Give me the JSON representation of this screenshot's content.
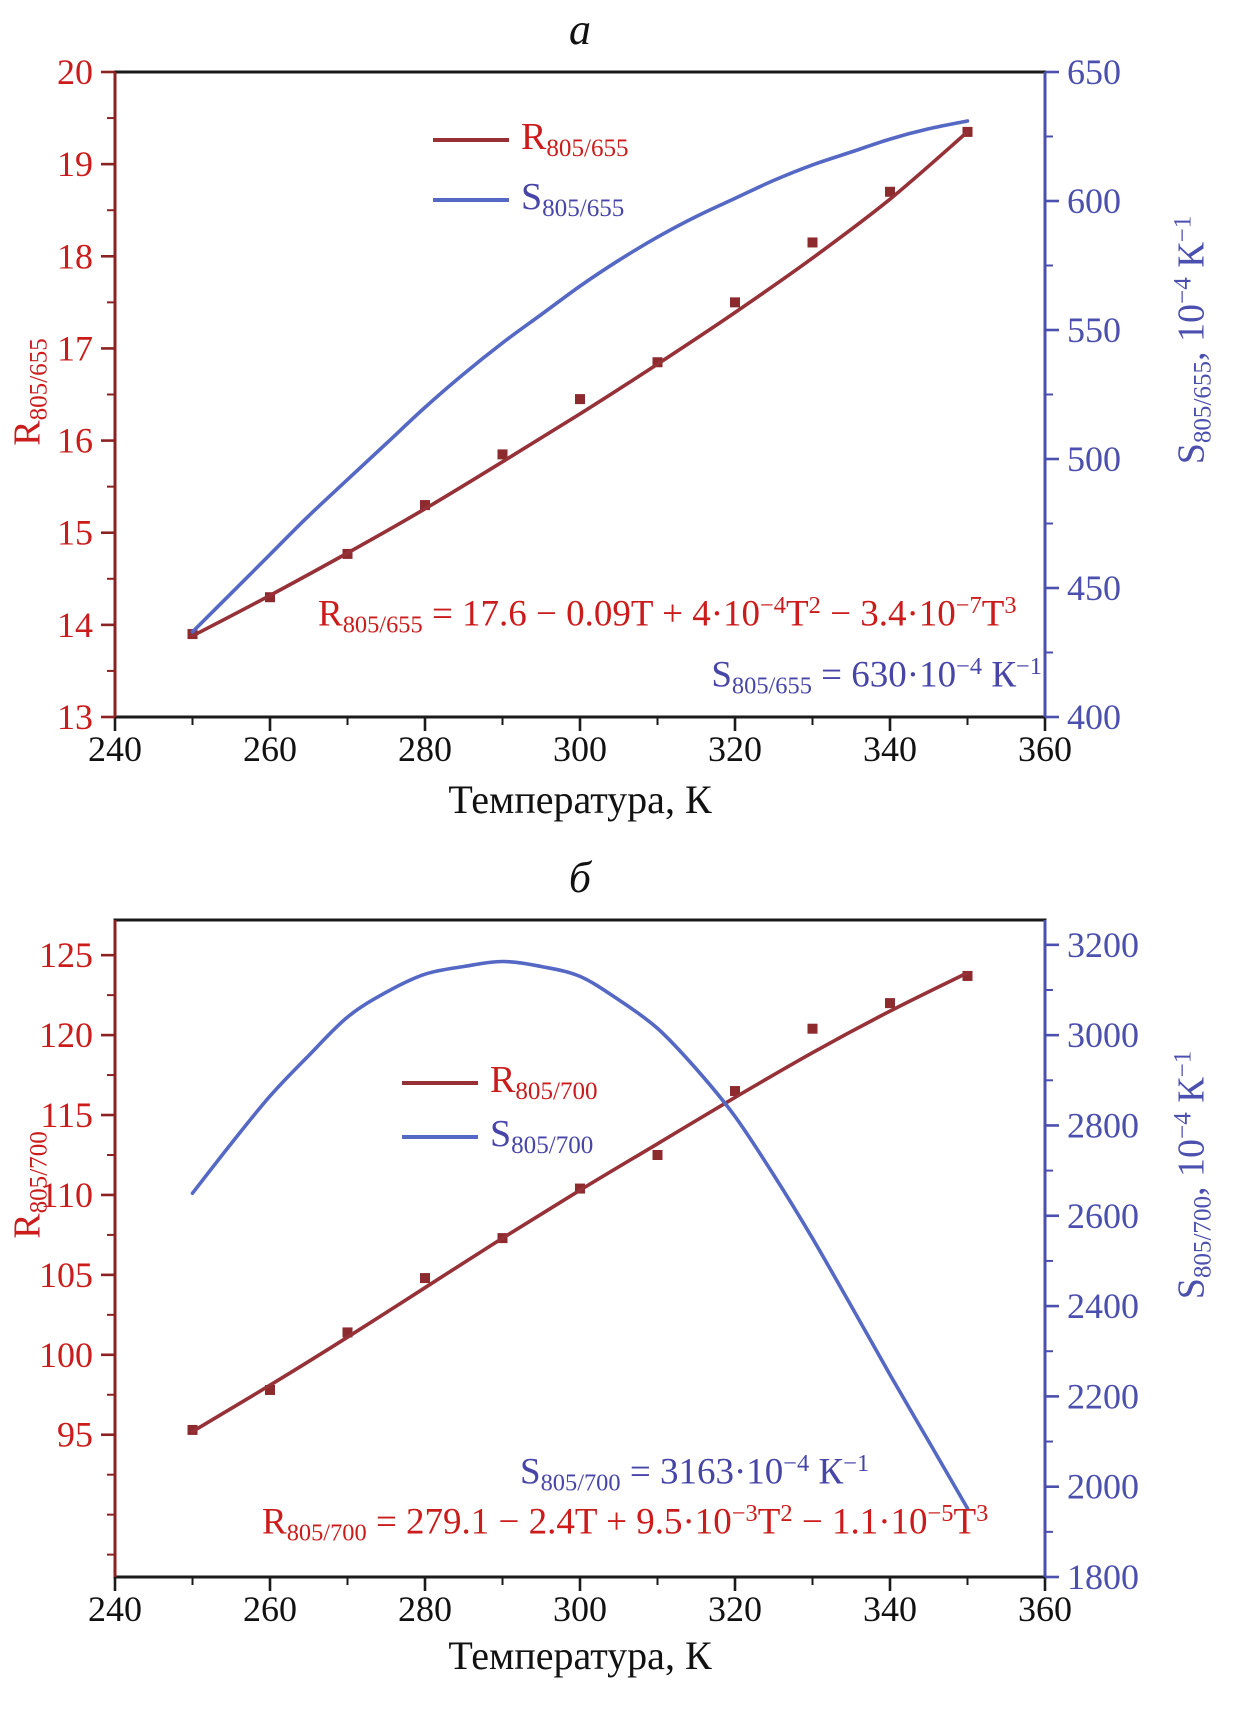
{
  "figure": {
    "background": "#ffffff"
  },
  "colors": {
    "red_text": "#cb1b1b",
    "dark_red_line": "#963138",
    "marker_red": "#8c2a2e",
    "left_axis": "#8b2222",
    "blue_line": "#5468c4",
    "blue_text": "#4746a8",
    "right_axis": "#4b4fae",
    "black_axis": "#1a1a1a",
    "tick_label_x": "#111111"
  },
  "chart_data": [
    {
      "type": "line",
      "panel_label": "а",
      "title": "а",
      "xlabel": "Температура, К",
      "xlim": [
        240,
        360
      ],
      "x_ticks": [
        240,
        260,
        280,
        300,
        320,
        340,
        360
      ],
      "x_minor_step": 10,
      "grid": "off",
      "legend_position": "inside-upper-center",
      "left_axis": {
        "plain_text": "R805/655",
        "label_parts": [
          {
            "t": "R"
          },
          {
            "t": "805/655",
            "sub": true
          }
        ],
        "ylim": [
          13,
          20
        ],
        "ticks": [
          13,
          14,
          15,
          16,
          17,
          18,
          19,
          20
        ],
        "minor_step": 0.5
      },
      "right_axis": {
        "plain_text": "S805/655, 10⁻⁴ К⁻¹",
        "label_parts": [
          {
            "t": "S"
          },
          {
            "t": "805/655",
            "sub": true
          },
          {
            "t": ", 10"
          },
          {
            "t": "−4",
            "sup": true
          },
          {
            "t": " К"
          },
          {
            "t": "−1",
            "sup": true
          }
        ],
        "ylim": [
          400,
          650
        ],
        "ticks": [
          400,
          450,
          500,
          550,
          600,
          650
        ],
        "minor_step": 25
      },
      "legend": [
        {
          "color": "dark_red_line",
          "text_color": "red_text",
          "plain_text": "R805/655",
          "parts": [
            {
              "t": "R"
            },
            {
              "t": "805/655",
              "sub": true
            }
          ]
        },
        {
          "color": "blue_line",
          "text_color": "blue_text",
          "plain_text": "S805/655",
          "parts": [
            {
              "t": "S"
            },
            {
              "t": "805/655",
              "sub": true
            }
          ]
        }
      ],
      "annotations": [
        {
          "id": "r-equation",
          "color": "red_text",
          "plain_text": "R805/655 = 17.6 − 0.09T + 4·10⁻⁴T² − 3.4·10⁻⁷T³",
          "parts": [
            {
              "t": "R"
            },
            {
              "t": "805/655",
              "sub": true
            },
            {
              "t": " = 17.6 − 0.09T + 4·10"
            },
            {
              "t": "−4",
              "sup": true
            },
            {
              "t": "T"
            },
            {
              "t": "2",
              "sup": true
            },
            {
              "t": " − 3.4·10"
            },
            {
              "t": "−7",
              "sup": true
            },
            {
              "t": "T"
            },
            {
              "t": "3",
              "sup": true
            }
          ]
        },
        {
          "id": "s-value",
          "color": "blue_text",
          "plain_text": "S805/655 = 630·10⁻⁴ К⁻¹",
          "parts": [
            {
              "t": "S"
            },
            {
              "t": "805/655",
              "sub": true
            },
            {
              "t": " = 630·10"
            },
            {
              "t": "−4",
              "sup": true
            },
            {
              "t": " К"
            },
            {
              "t": "−1",
              "sup": true
            }
          ]
        }
      ],
      "series": [
        {
          "name": "R805/655 measured",
          "axis": "left",
          "type": "scatter",
          "color": "marker_red",
          "points": [
            [
              250,
              13.9
            ],
            [
              260,
              14.3
            ],
            [
              270,
              14.77
            ],
            [
              280,
              15.3
            ],
            [
              290,
              15.85
            ],
            [
              300,
              16.45
            ],
            [
              310,
              16.85
            ],
            [
              320,
              17.5
            ],
            [
              330,
              18.15
            ],
            [
              340,
              18.7
            ],
            [
              350,
              19.35
            ]
          ]
        },
        {
          "name": "R805/655 cubic fit",
          "axis": "left",
          "type": "line",
          "color": "dark_red_line",
          "points": [
            [
              250,
              13.88
            ],
            [
              260,
              14.32
            ],
            [
              270,
              14.78
            ],
            [
              280,
              15.26
            ],
            [
              290,
              15.77
            ],
            [
              300,
              16.29
            ],
            [
              310,
              16.83
            ],
            [
              320,
              17.39
            ],
            [
              330,
              17.98
            ],
            [
              340,
              18.62
            ],
            [
              350,
              19.35
            ]
          ]
        },
        {
          "name": "S805/655",
          "axis": "right",
          "type": "line",
          "color": "blue_line",
          "points": [
            [
              250,
              433
            ],
            [
              255,
              448
            ],
            [
              260,
              463
            ],
            [
              265,
              478
            ],
            [
              270,
              492
            ],
            [
              275,
              506
            ],
            [
              280,
              520
            ],
            [
              285,
              533
            ],
            [
              290,
              545
            ],
            [
              295,
              556
            ],
            [
              300,
              567
            ],
            [
              305,
              577
            ],
            [
              310,
              586
            ],
            [
              315,
              594
            ],
            [
              320,
              601
            ],
            [
              325,
              608
            ],
            [
              330,
              614
            ],
            [
              335,
              619
            ],
            [
              340,
              624
            ],
            [
              345,
              628
            ],
            [
              350,
              631
            ]
          ]
        }
      ]
    },
    {
      "type": "line",
      "panel_label": "б",
      "title": "б",
      "xlabel": "Температура, К",
      "xlim": [
        240,
        360
      ],
      "x_ticks": [
        240,
        260,
        280,
        300,
        320,
        340,
        360
      ],
      "x_minor_step": 10,
      "grid": "off",
      "legend_position": "inside-middle-left",
      "left_axis": {
        "plain_text": "R805/700",
        "label_parts": [
          {
            "t": "R"
          },
          {
            "t": "805/700",
            "sub": true
          }
        ],
        "ylim": [
          86.1,
          127.2
        ],
        "ticks": [
          95,
          100,
          105,
          110,
          115,
          120,
          125
        ],
        "minor_step": 2.5
      },
      "right_axis": {
        "plain_text": "S805/700, 10⁻⁴ К⁻¹",
        "label_parts": [
          {
            "t": "S"
          },
          {
            "t": "805/700",
            "sub": true
          },
          {
            "t": ", 10"
          },
          {
            "t": "−4",
            "sup": true
          },
          {
            "t": " К"
          },
          {
            "t": "−1",
            "sup": true
          }
        ],
        "ylim": [
          1800,
          3255
        ],
        "ticks": [
          1800,
          2000,
          2200,
          2400,
          2600,
          2800,
          3000,
          3200
        ],
        "minor_step": 100
      },
      "legend": [
        {
          "color": "dark_red_line",
          "text_color": "red_text",
          "plain_text": "R805/700",
          "parts": [
            {
              "t": "R"
            },
            {
              "t": "805/700",
              "sub": true
            }
          ]
        },
        {
          "color": "blue_line",
          "text_color": "blue_text",
          "plain_text": "S805/700",
          "parts": [
            {
              "t": "S"
            },
            {
              "t": "805/700",
              "sub": true
            }
          ]
        }
      ],
      "annotations": [
        {
          "id": "s-value",
          "color": "blue_text",
          "plain_text": "S805/700 = 3163·10⁻⁴ К⁻¹",
          "parts": [
            {
              "t": "S"
            },
            {
              "t": "805/700",
              "sub": true
            },
            {
              "t": " = 3163·10"
            },
            {
              "t": "−4",
              "sup": true
            },
            {
              "t": " К"
            },
            {
              "t": "−1",
              "sup": true
            }
          ]
        },
        {
          "id": "r-equation",
          "color": "red_text",
          "plain_text": "R805/700 = 279.1 − 2.4T + 9.5·10⁻³T² − 1.1·10⁻⁵T³",
          "parts": [
            {
              "t": "R"
            },
            {
              "t": "805/700",
              "sub": true
            },
            {
              "t": " = 279.1 − 2.4T + 9.5·10"
            },
            {
              "t": "−3",
              "sup": true
            },
            {
              "t": "T"
            },
            {
              "t": "2",
              "sup": true
            },
            {
              "t": " − 1.1·10"
            },
            {
              "t": "−5",
              "sup": true
            },
            {
              "t": "T"
            },
            {
              "t": "3",
              "sup": true
            }
          ]
        }
      ],
      "series": [
        {
          "name": "R805/700 measured",
          "axis": "left",
          "type": "scatter",
          "color": "marker_red",
          "points": [
            [
              250,
              95.3
            ],
            [
              260,
              97.8
            ],
            [
              270,
              101.4
            ],
            [
              280,
              104.8
            ],
            [
              290,
              107.3
            ],
            [
              300,
              110.4
            ],
            [
              310,
              112.5
            ],
            [
              320,
              116.5
            ],
            [
              330,
              120.4
            ],
            [
              340,
              122.0
            ],
            [
              350,
              123.7
            ]
          ]
        },
        {
          "name": "R805/700 cubic fit",
          "axis": "left",
          "type": "line",
          "color": "dark_red_line",
          "points": [
            [
              250,
              95.2
            ],
            [
              260,
              98.1
            ],
            [
              270,
              101.1
            ],
            [
              280,
              104.2
            ],
            [
              290,
              107.3
            ],
            [
              300,
              110.3
            ],
            [
              310,
              113.2
            ],
            [
              320,
              116.1
            ],
            [
              330,
              118.9
            ],
            [
              340,
              121.5
            ],
            [
              350,
              123.9
            ]
          ]
        },
        {
          "name": "S805/700",
          "axis": "right",
          "type": "line",
          "color": "blue_line",
          "points": [
            [
              250,
              2650
            ],
            [
              255,
              2760
            ],
            [
              260,
              2865
            ],
            [
              265,
              2955
            ],
            [
              270,
              3040
            ],
            [
              275,
              3095
            ],
            [
              280,
              3135
            ],
            [
              285,
              3152
            ],
            [
              290,
              3163
            ],
            [
              295,
              3152
            ],
            [
              300,
              3130
            ],
            [
              305,
              3078
            ],
            [
              310,
              3015
            ],
            [
              315,
              2925
            ],
            [
              320,
              2820
            ],
            [
              325,
              2690
            ],
            [
              330,
              2550
            ],
            [
              335,
              2400
            ],
            [
              340,
              2248
            ],
            [
              345,
              2100
            ],
            [
              350,
              1952
            ]
          ]
        }
      ]
    }
  ]
}
